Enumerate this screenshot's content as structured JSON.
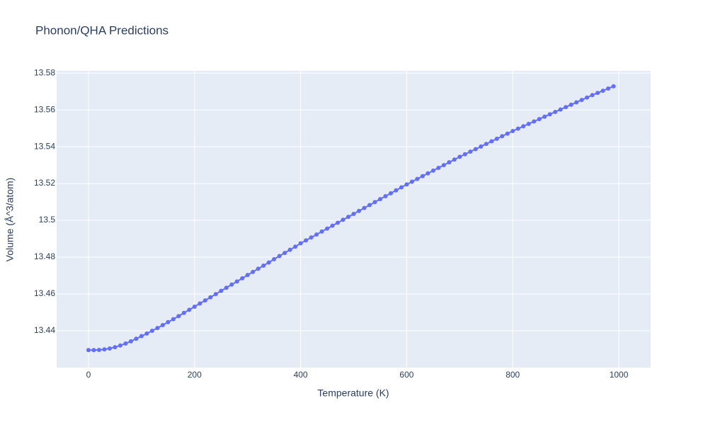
{
  "chart_data": {
    "type": "line",
    "title": "Phonon/QHA Predictions",
    "x_label": "Temperature (K)",
    "y_label": "Volume (Å^3/atom)",
    "color": "#636efa",
    "grid": true,
    "markers": true,
    "xlim": [
      -60,
      1060
    ],
    "xticks": [
      0,
      200,
      400,
      600,
      800,
      1000
    ],
    "ylim": [
      13.42,
      13.5812
    ],
    "yticks": [
      13.44,
      13.46,
      13.48,
      13.5,
      13.52,
      13.54,
      13.56,
      13.58
    ],
    "x": [
      0,
      10,
      20,
      30,
      40,
      50,
      60,
      70,
      80,
      90,
      100,
      110,
      120,
      130,
      140,
      150,
      160,
      170,
      180,
      190,
      200,
      210,
      220,
      230,
      240,
      250,
      260,
      270,
      280,
      290,
      300,
      310,
      320,
      330,
      340,
      350,
      360,
      370,
      380,
      390,
      400,
      410,
      420,
      430,
      440,
      450,
      460,
      470,
      480,
      490,
      500,
      510,
      520,
      530,
      540,
      550,
      560,
      570,
      580,
      590,
      600,
      610,
      620,
      630,
      640,
      650,
      660,
      670,
      680,
      690,
      700,
      710,
      720,
      730,
      740,
      750,
      760,
      770,
      780,
      790,
      800,
      810,
      820,
      830,
      840,
      850,
      860,
      870,
      880,
      890,
      900,
      910,
      920,
      930,
      940,
      950,
      960,
      970,
      980,
      990
    ],
    "values": [
      13.4295,
      13.4295,
      13.4296,
      13.4299,
      13.4304,
      13.4311,
      13.432,
      13.4331,
      13.4343,
      13.4357,
      13.4371,
      13.4385,
      13.44,
      13.4415,
      13.4431,
      13.4447,
      13.4463,
      13.448,
      13.4497,
      13.4514,
      13.4531,
      13.4548,
      13.4565,
      13.4582,
      13.4599,
      13.4617,
      13.4634,
      13.4651,
      13.4668,
      13.4685,
      13.4703,
      13.472,
      13.4737,
      13.4754,
      13.4771,
      13.4789,
      13.4806,
      13.4823,
      13.484,
      13.4857,
      13.4875,
      13.4891,
      13.4907,
      13.4923,
      13.4939,
      13.4955,
      13.4971,
      13.4987,
      13.5003,
      13.5019,
      13.5035,
      13.5051,
      13.5067,
      13.5083,
      13.5099,
      13.5115,
      13.5131,
      13.5147,
      13.5163,
      13.5179,
      13.5195,
      13.521,
      13.5225,
      13.524,
      13.5255,
      13.527,
      13.5285,
      13.53,
      13.5315,
      13.533,
      13.5345,
      13.5359,
      13.5373,
      13.5387,
      13.5401,
      13.5415,
      13.5429,
      13.5443,
      13.5457,
      13.5471,
      13.5485,
      13.5498,
      13.5511,
      13.5524,
      13.5537,
      13.555,
      13.5563,
      13.5576,
      13.5589,
      13.5602,
      13.5615,
      13.5628,
      13.5641,
      13.5654,
      13.5667,
      13.568,
      13.5692,
      13.5704,
      13.5716,
      13.5728
    ]
  }
}
